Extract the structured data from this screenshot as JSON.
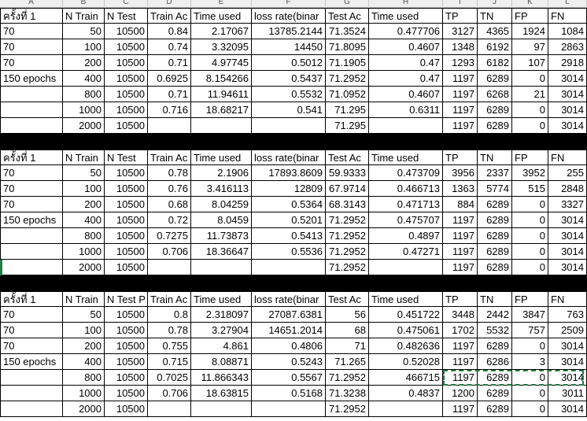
{
  "column_headers": [
    "A",
    "B",
    "C",
    "D",
    "E",
    "F",
    "G",
    "H",
    "I",
    "J",
    "K",
    "L"
  ],
  "blocks": [
    {
      "header": [
        "ครั้งที่ 1",
        "N Train",
        "N Test",
        "Train Ac",
        "Time used",
        "loss rate(binar",
        "Test Ac",
        "Time used",
        "TP",
        "TN",
        "FP",
        "FN"
      ],
      "rows": [
        [
          "70",
          "50",
          "10500",
          "0.84",
          "2.17067",
          "13785.2144",
          "71.3524",
          "0.477706",
          "3127",
          "4365",
          "1924",
          "1084"
        ],
        [
          "70",
          "100",
          "10500",
          "0.74",
          "3.32095",
          "14450",
          "71.8095",
          "0.4607",
          "1348",
          "6192",
          "97",
          "2863"
        ],
        [
          "70",
          "200",
          "10500",
          "0.71",
          "4.97745",
          "0.5012",
          "71.1905",
          "0.47",
          "1293",
          "6182",
          "107",
          "2918"
        ],
        [
          "150 epochs",
          "400",
          "10500",
          "0.6925",
          "8.154266",
          "0.5437",
          "71.2952",
          "0.47",
          "1197",
          "6289",
          "0",
          "3014"
        ],
        [
          "",
          "800",
          "10500",
          "0.71",
          "11.94611",
          "0.5532",
          "71.0952",
          "0.4607",
          "1197",
          "6268",
          "21",
          "3014"
        ],
        [
          "",
          "1000",
          "10500",
          "0.716",
          "18.68217",
          "0.541",
          "71.295",
          "0.6311",
          "1197",
          "6289",
          "0",
          "3014"
        ],
        [
          "",
          "2000",
          "10500",
          "",
          "",
          "",
          "71.295",
          "",
          "1197",
          "6289",
          "0",
          "3014"
        ]
      ]
    },
    {
      "header": [
        "ครั้งที่ 1",
        "N Train",
        "N Test",
        "Train Ac",
        "Time used",
        "loss rate(binar",
        "Test Ac",
        "Time used",
        "TP",
        "TN",
        "FP",
        "FN"
      ],
      "rows": [
        [
          "70",
          "50",
          "10500",
          "0.78",
          "2.1906",
          "17893.8609",
          "59.9333",
          "0.473709",
          "3956",
          "2337",
          "3952",
          "255"
        ],
        [
          "70",
          "100",
          "10500",
          "0.76",
          "3.416113",
          "12809",
          "67.9714",
          "0.466713",
          "1363",
          "5774",
          "515",
          "2848"
        ],
        [
          "70",
          "200",
          "10500",
          "0.68",
          "8.04259",
          "0.5364",
          "68.3143",
          "0.471713",
          "884",
          "6289",
          "0",
          "3327"
        ],
        [
          "150 epochs",
          "400",
          "10500",
          "0.72",
          "8.0459",
          "0.5201",
          "71.2952",
          "0.475707",
          "1197",
          "6289",
          "0",
          "3014"
        ],
        [
          "",
          "800",
          "10500",
          "0.7275",
          "11.73873",
          "0.5413",
          "71.2952",
          "0.4897",
          "1197",
          "6289",
          "0",
          "3014"
        ],
        [
          "",
          "1000",
          "10500",
          "0.706",
          "18.36647",
          "0.5536",
          "71.2952",
          "0.47271",
          "1197",
          "6289",
          "0",
          "3014"
        ],
        [
          "",
          "2000",
          "10500",
          "",
          "",
          "",
          "71.2952",
          "",
          "1197",
          "6289",
          "0",
          "3014"
        ]
      ]
    },
    {
      "header": [
        "ครั้งที่ 1",
        "N Train",
        "N Test P",
        "Train Ac",
        "Time used",
        "loss rate(binar",
        "Test Ac",
        "Time used",
        "TP",
        "TN",
        "FP",
        "FN"
      ],
      "rows": [
        [
          "70",
          "50",
          "10500",
          "0.8",
          "2.318097",
          "27087.6381",
          "56",
          "0.451722",
          "3448",
          "2442",
          "3847",
          "763"
        ],
        [
          "70",
          "100",
          "10500",
          "0.78",
          "3.27904",
          "14651.2014",
          "68",
          "0.475061",
          "1702",
          "5532",
          "757",
          "2509"
        ],
        [
          "70",
          "200",
          "10500",
          "0.755",
          "4.861",
          "0.4806",
          "71",
          "0.482636",
          "1197",
          "6289",
          "0",
          "3014"
        ],
        [
          "150 epochs",
          "400",
          "10500",
          "0.715",
          "8.08871",
          "0.5243",
          "71.265",
          "0.52028",
          "1197",
          "6286",
          "3",
          "3014"
        ],
        [
          "",
          "800",
          "10500",
          "0.7025",
          "11.866343",
          "0.5567",
          "71.2952",
          "466715",
          "1197",
          "6289",
          "0",
          "3014"
        ],
        [
          "",
          "1000",
          "10500",
          "0.706",
          "18.63815",
          "0.5168",
          "71.3238",
          "0.4837",
          "1200",
          "6289",
          "0",
          "3011"
        ],
        [
          "",
          "2000",
          "10500",
          "",
          "",
          "",
          "71.2952",
          "",
          "1197",
          "6289",
          "0",
          "3014"
        ]
      ]
    }
  ]
}
